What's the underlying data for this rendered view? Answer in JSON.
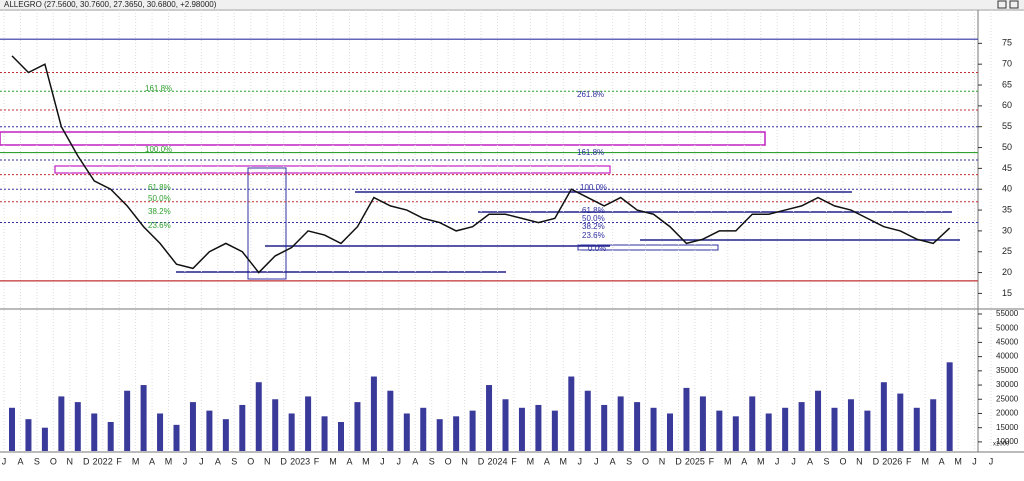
{
  "chart_data": {
    "type": "line",
    "title": "ALLEGRO (27.5600, 30.7600, 27.3650, 30.6800, +2.98000)",
    "categories": [
      "J",
      "A",
      "S",
      "O",
      "N",
      "D",
      "2022",
      "F",
      "M",
      "A",
      "M",
      "J",
      "J",
      "A",
      "S",
      "O",
      "N",
      "D",
      "2023",
      "F",
      "M",
      "A",
      "M",
      "J",
      "J",
      "A",
      "S",
      "O",
      "N",
      "D",
      "2024",
      "F",
      "M",
      "A",
      "M",
      "J",
      "J",
      "A",
      "S",
      "O",
      "N",
      "D",
      "2025",
      "F",
      "M",
      "A",
      "M",
      "J",
      "J",
      "A",
      "S",
      "O",
      "N",
      "D",
      "2026",
      "F",
      "M",
      "A",
      "M",
      "J",
      "J"
    ],
    "series": [
      {
        "name": "Price",
        "color": "#111111",
        "values": [
          72,
          68,
          70,
          55,
          48,
          42,
          40,
          36,
          31,
          27,
          22,
          21,
          25,
          27,
          25,
          20,
          24,
          26,
          30,
          29,
          27,
          31,
          38,
          36,
          35,
          33,
          32,
          30,
          31,
          34,
          34,
          33,
          32,
          33,
          40,
          38,
          36,
          38,
          35,
          34,
          31,
          27,
          28,
          30,
          30,
          34,
          34,
          35,
          36,
          38,
          36,
          35,
          33,
          31,
          30,
          28,
          27,
          30.68,
          null,
          null,
          null
        ]
      },
      {
        "name": "Volume",
        "color": "#3a3a9a",
        "axis": "y2",
        "values": [
          22000,
          18000,
          15000,
          26000,
          24000,
          20000,
          17000,
          28000,
          30000,
          20000,
          16000,
          24000,
          21000,
          18000,
          23000,
          31000,
          25000,
          20000,
          26000,
          19000,
          17000,
          24000,
          33000,
          28000,
          20000,
          22000,
          18000,
          19000,
          21000,
          30000,
          25000,
          22000,
          23000,
          21000,
          33000,
          28000,
          23000,
          26000,
          24000,
          22000,
          20000,
          29000,
          26000,
          21000,
          19000,
          26000,
          20000,
          22000,
          24000,
          28000,
          22000,
          25000,
          21000,
          31000,
          27000,
          22000,
          25000,
          38000,
          null,
          null,
          null
        ]
      }
    ],
    "ylim": [
      11.5,
      83
    ],
    "yticks": [
      15,
      20,
      25,
      30,
      35,
      40,
      45,
      50,
      55,
      60,
      65,
      70,
      75
    ],
    "y2lim": [
      6800,
      56400
    ],
    "y2ticks": [
      10000,
      15000,
      20000,
      25000,
      30000,
      35000,
      40000,
      45000,
      50000,
      55000
    ],
    "volume_unit_label": "x1000",
    "levels": [
      {
        "value": 18,
        "color": "#c03030",
        "dash": false
      },
      {
        "value": 43.5,
        "color": "#c03030",
        "dash": true
      },
      {
        "value": 47,
        "color": "#3030a0",
        "dash": true
      },
      {
        "value": 48.8,
        "color": "#30a030",
        "dash": false
      },
      {
        "value": 55,
        "color": "#3030a0",
        "dash": true
      },
      {
        "value": 59,
        "color": "#c03030",
        "dash": true
      },
      {
        "value": 63.5,
        "color": "#30a030",
        "dash": true
      },
      {
        "value": 68,
        "color": "#c03030",
        "dash": true
      },
      {
        "value": 40,
        "color": "#3030a0",
        "dash": true
      },
      {
        "value": 37,
        "color": "#c03030",
        "dash": true
      },
      {
        "value": 32,
        "color": "#3030a0",
        "dash": true
      },
      {
        "value": 76,
        "color": "#3030a0",
        "dash": false
      }
    ],
    "annotations": [
      "161.8%",
      "100.0%",
      "61.8%",
      "50.0%",
      "38.2%",
      "23.6%",
      "261.8%",
      "161.8%",
      "100.0%",
      "61.8%",
      "50.0%",
      "38.2%",
      "23.6%",
      "0.0%"
    ]
  }
}
